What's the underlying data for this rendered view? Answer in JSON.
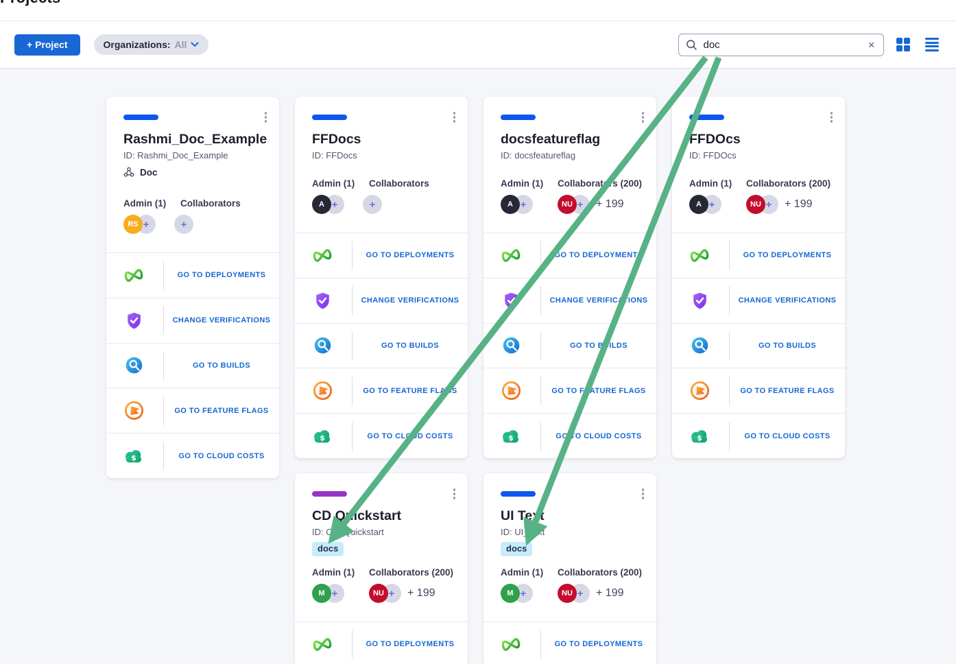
{
  "page": {
    "title": "Projects"
  },
  "toolbar": {
    "new_project_label": "+ Project",
    "org_filter_label": "Organizations:",
    "org_filter_value": "All",
    "search_value": "doc",
    "clear_label": "×"
  },
  "ui": {
    "plus_label": "+"
  },
  "colors": {
    "primary_blue": "#1767d5",
    "link_blue": "#1467d2",
    "bar_blue": "#0d56f0",
    "bar_purple": "#9634c8",
    "tag_bg": "#c7ecf9",
    "arrow_green": "#57b286",
    "avatar_orange": "#f8ab1f",
    "avatar_dark": "#262836",
    "avatar_red": "#c30d2c",
    "avatar_green": "#2fa04c"
  },
  "cards": [
    {
      "title": "Rashmi_Doc_Example",
      "id_label": "ID: Rashmi_Doc_Example",
      "org_label": "Doc",
      "admin_label": "Admin (1)",
      "collab_label": "Collaborators",
      "admin_initials": "RS",
      "admin_color": "#f8ab1f",
      "bar_color": "#0d56f0",
      "actions": [
        {
          "icon": "deployments-icon",
          "label": "GO TO DEPLOYMENTS"
        },
        {
          "icon": "verifications-icon",
          "label": "CHANGE VERIFICATIONS"
        },
        {
          "icon": "builds-icon",
          "label": "GO TO BUILDS"
        },
        {
          "icon": "feature-flags-icon",
          "label": "GO TO FEATURE FLAGS"
        },
        {
          "icon": "cloud-costs-icon",
          "label": "GO TO CLOUD COSTS"
        }
      ]
    },
    {
      "title": "FFDocs",
      "id_label": "ID: FFDocs",
      "admin_label": "Admin (1)",
      "collab_label": "Collaborators",
      "admin_initials": "A",
      "admin_color": "#262836",
      "bar_color": "#0d56f0",
      "actions": [
        {
          "icon": "deployments-icon",
          "label": "GO TO DEPLOYMENTS"
        },
        {
          "icon": "verifications-icon",
          "label": "CHANGE VERIFICATIONS"
        },
        {
          "icon": "builds-icon",
          "label": "GO TO BUILDS"
        },
        {
          "icon": "feature-flags-icon",
          "label": "GO TO FEATURE FLAGS"
        },
        {
          "icon": "cloud-costs-icon",
          "label": "GO TO CLOUD COSTS"
        }
      ]
    },
    {
      "title": "docsfeatureflag",
      "id_label": "ID: docsfeatureflag",
      "admin_label": "Admin (1)",
      "collab_label": "Collaborators (200)",
      "admin_initials": "A",
      "admin_color": "#262836",
      "collab_initials": "NU",
      "collab_color": "#c30d2c",
      "collab_extra": "+ 199",
      "bar_color": "#0d56f0",
      "actions": [
        {
          "icon": "deployments-icon",
          "label": "GO TO DEPLOYMENTS"
        },
        {
          "icon": "verifications-icon",
          "label": "CHANGE VERIFICATIONS"
        },
        {
          "icon": "builds-icon",
          "label": "GO TO BUILDS"
        },
        {
          "icon": "feature-flags-icon",
          "label": "GO TO FEATURE FLAGS"
        },
        {
          "icon": "cloud-costs-icon",
          "label": "GO TO CLOUD COSTS"
        }
      ]
    },
    {
      "title": "FFDOcs",
      "id_label": "ID: FFDOcs",
      "admin_label": "Admin (1)",
      "collab_label": "Collaborators (200)",
      "admin_initials": "A",
      "admin_color": "#262836",
      "collab_initials": "NU",
      "collab_color": "#c30d2c",
      "collab_extra": "+ 199",
      "bar_color": "#0d56f0",
      "actions": [
        {
          "icon": "deployments-icon",
          "label": "GO TO DEPLOYMENTS"
        },
        {
          "icon": "verifications-icon",
          "label": "CHANGE VERIFICATIONS"
        },
        {
          "icon": "builds-icon",
          "label": "GO TO BUILDS"
        },
        {
          "icon": "feature-flags-icon",
          "label": "GO TO FEATURE FLAGS"
        },
        {
          "icon": "cloud-costs-icon",
          "label": "GO TO CLOUD COSTS"
        }
      ]
    },
    {
      "title": "CD Quickstart",
      "id_label": "ID: CD_Quickstart",
      "tag": "docs",
      "admin_label": "Admin (1)",
      "collab_label": "Collaborators (200)",
      "admin_initials": "M",
      "admin_color": "#2fa04c",
      "collab_initials": "NU",
      "collab_color": "#c30d2c",
      "collab_extra": "+ 199",
      "bar_color": "#9634c8",
      "actions": [
        {
          "icon": "deployments-icon",
          "label": "GO TO DEPLOYMENTS"
        }
      ]
    },
    {
      "title": "UI Text",
      "id_label": "ID: UI_Text",
      "tag": "docs",
      "admin_label": "Admin (1)",
      "collab_label": "Collaborators (200)",
      "admin_initials": "M",
      "admin_color": "#2fa04c",
      "collab_initials": "NU",
      "collab_color": "#c30d2c",
      "collab_extra": "+ 199",
      "bar_color": "#0d56f0",
      "actions": [
        {
          "icon": "deployments-icon",
          "label": "GO TO DEPLOYMENTS"
        }
      ]
    }
  ]
}
